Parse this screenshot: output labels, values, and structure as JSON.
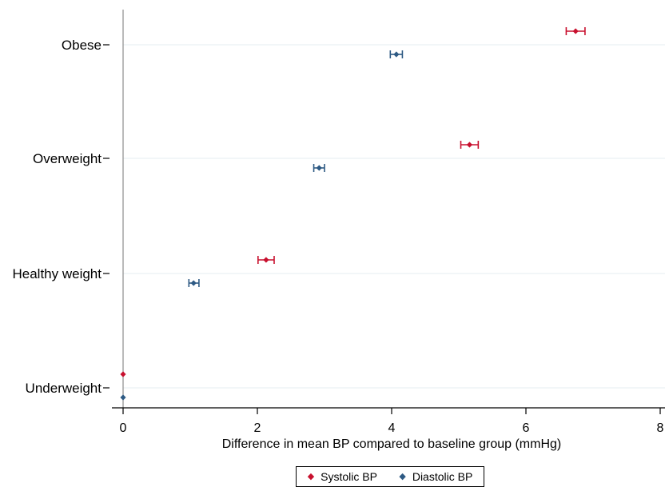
{
  "chart_data": {
    "type": "scatter",
    "xlabel": "Difference in mean BP compared to baseline group (mmHg)",
    "xlim": [
      0,
      8
    ],
    "xticks": [
      0,
      2,
      4,
      6,
      8
    ],
    "categories": [
      "Underweight",
      "Healthy weight",
      "Overweight",
      "Obese"
    ],
    "grid": true,
    "legend_position": "bottom",
    "series": [
      {
        "name": "Systolic BP",
        "color": "#c8102e",
        "values": [
          0,
          2.13,
          5.16,
          6.74
        ],
        "ci_low": [
          0,
          2.01,
          5.03,
          6.6
        ],
        "ci_high": [
          0,
          2.25,
          5.29,
          6.88
        ]
      },
      {
        "name": "Diastolic BP",
        "color": "#2e5a84",
        "values": [
          0,
          1.05,
          2.92,
          4.07
        ],
        "ci_low": [
          0,
          0.98,
          2.84,
          3.98
        ],
        "ci_high": [
          0,
          1.13,
          3.0,
          4.16
        ]
      }
    ]
  }
}
